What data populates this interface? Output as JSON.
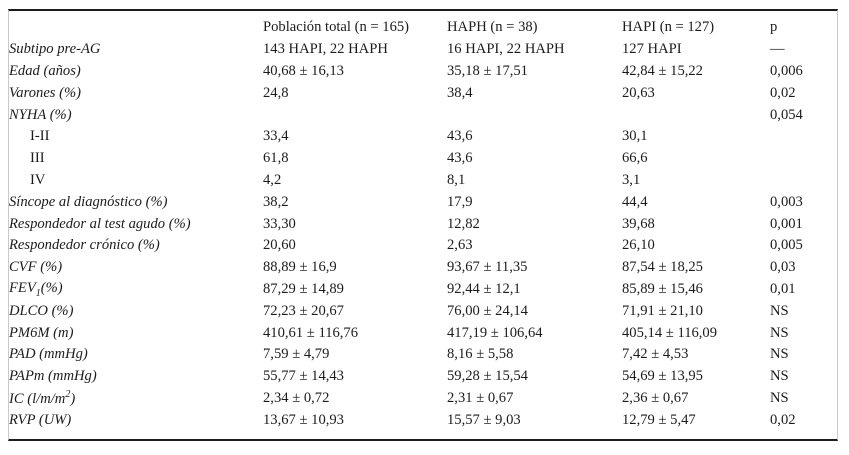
{
  "table": {
    "columns": [
      "",
      "Población total (n = 165)",
      "HAPH (n = 38)",
      "HAPI (n = 127)",
      "p"
    ],
    "rows": [
      {
        "label": "Subtipo pre-AG",
        "indent": false,
        "values": [
          "143 HAPI, 22 HAPH",
          "16 HAPI, 22 HAPH",
          "127 HAPI",
          "—"
        ]
      },
      {
        "label": "Edad (años)",
        "indent": false,
        "values": [
          "40,68 ± 16,13",
          "35,18 ± 17,51",
          "42,84 ± 15,22",
          "0,006"
        ]
      },
      {
        "label": "Varones (%)",
        "indent": false,
        "values": [
          "24,8",
          "38,4",
          "20,63",
          "0,02"
        ]
      },
      {
        "label": "NYHA (%)",
        "indent": false,
        "values": [
          "",
          "",
          "",
          "0,054"
        ]
      },
      {
        "label": "I-II",
        "indent": true,
        "values": [
          "33,4",
          "43,6",
          "30,1",
          ""
        ]
      },
      {
        "label": "III",
        "indent": true,
        "values": [
          "61,8",
          "43,6",
          "66,6",
          ""
        ]
      },
      {
        "label": "IV",
        "indent": true,
        "values": [
          "4,2",
          "8,1",
          "3,1",
          ""
        ]
      },
      {
        "label": "Síncope al diagnóstico (%)",
        "indent": false,
        "values": [
          "38,2",
          "17,9",
          "44,4",
          "0,003"
        ]
      },
      {
        "label": "Respondedor al test agudo (%)",
        "indent": false,
        "values": [
          "33,30",
          "12,82",
          "39,68",
          "0,001"
        ]
      },
      {
        "label": "Respondedor crónico (%)",
        "indent": false,
        "values": [
          "20,60",
          "2,63",
          "26,10",
          "0,005"
        ]
      },
      {
        "label": "CVF (%)",
        "indent": false,
        "values": [
          "88,89 ± 16,9",
          "93,67 ± 11,35",
          "87,54 ± 18,25",
          "0,03"
        ]
      },
      {
        "label": "FEV",
        "sub": "1",
        "suffix": "(%)",
        "indent": false,
        "values": [
          "87,29 ± 14,89",
          "92,44 ± 12,1",
          "85,89 ± 15,46",
          "0,01"
        ]
      },
      {
        "label": "DLCO (%)",
        "indent": false,
        "values": [
          "72,23 ± 20,67",
          "76,00 ± 24,14",
          "71,91 ± 21,10",
          "NS"
        ]
      },
      {
        "label": "PM6M (m)",
        "indent": false,
        "values": [
          "410,61 ± 116,76",
          "417,19 ± 106,64",
          "405,14 ± 116,09",
          "NS"
        ]
      },
      {
        "label": "PAD (mmHg)",
        "indent": false,
        "values": [
          "7,59 ± 4,79",
          "8,16 ± 5,58",
          "7,42 ± 4,53",
          "NS"
        ]
      },
      {
        "label": "PAPm (mmHg)",
        "indent": false,
        "values": [
          "55,77 ± 14,43",
          "59,28 ± 15,54",
          "54,69 ± 13,95",
          "NS"
        ]
      },
      {
        "label": "IC (l/m/m",
        "sup": "2",
        "suffix": ")",
        "indent": false,
        "values": [
          "2,34 ± 0,72",
          "2,31 ± 0,67",
          "2,36 ± 0,67",
          "NS"
        ]
      },
      {
        "label": "RVP (UW)",
        "indent": false,
        "values": [
          "13,67 ± 10,93",
          "15,57 ± 9,03",
          "12,79 ± 5,47",
          "0,02"
        ]
      }
    ]
  }
}
